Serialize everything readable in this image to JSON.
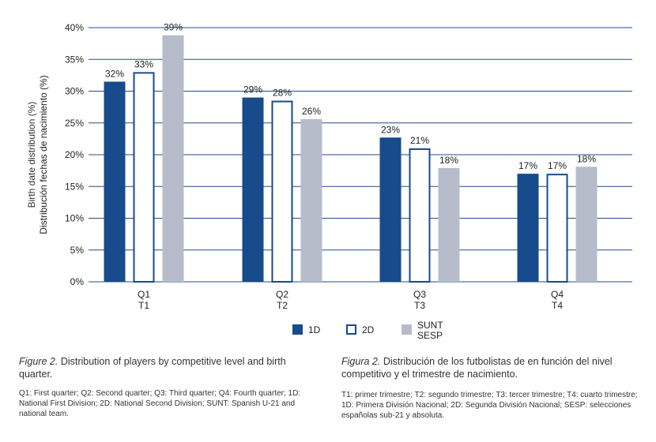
{
  "chart_data": {
    "type": "bar",
    "ylabel_en": "Birth date distribution (%)",
    "ylabel_es": "Distribución fechas de nacimiento (%)",
    "ylim": [
      0,
      40
    ],
    "yticks": [
      "0%",
      "5%",
      "10%",
      "15%",
      "20%",
      "25%",
      "30%",
      "35%",
      "40%"
    ],
    "ytick_values": [
      0,
      5,
      10,
      15,
      20,
      25,
      30,
      35,
      40
    ],
    "grid": true,
    "categories": [
      {
        "en": "Q1",
        "es": "T1"
      },
      {
        "en": "Q2",
        "es": "T2"
      },
      {
        "en": "Q3",
        "es": "T3"
      },
      {
        "en": "Q4",
        "es": "T4"
      }
    ],
    "series": [
      {
        "name": "1D",
        "values": [
          31.5,
          29,
          22.7,
          17
        ],
        "labels": [
          "32%",
          "29%",
          "23%",
          "17%"
        ],
        "style": "filled",
        "color": "#174b8c"
      },
      {
        "name": "2D",
        "values": [
          33,
          28.5,
          21,
          17
        ],
        "labels": [
          "33%",
          "28%",
          "21%",
          "17%"
        ],
        "style": "outline",
        "color": "#174b8c"
      },
      {
        "name": "SUNT\nSESP",
        "values": [
          38.8,
          25.6,
          17.9,
          18.1
        ],
        "labels": [
          "39%",
          "26%",
          "18%",
          "18%"
        ],
        "style": "filled",
        "color": "#b7bccb"
      }
    ],
    "legend_position": "bottom-center"
  },
  "captions": {
    "en": {
      "title_label": "Figure 2.",
      "title_text": " Distribution of players by competitive level and birth quarter.",
      "notes": "Q1: First quarter; Q2: Second quarter; Q3: Third quarter; Q4: Fourth quarter; 1D: National First Division; 2D: National Second Division; SUNT: Spanish U-21 and national team."
    },
    "es": {
      "title_label": "Figura 2.",
      "title_text": " Distribución de los futbolistas de en función del nivel competitivo y el trimestre de nacimiento.",
      "notes": "T1: primer trimestre; T2: segundo trimestre; T3: tercer trimestre; T4: cuarto trimestre; 1D: Primera División Nacional; 2D: Segunda División Nacional; SESP: selecciones españolas sub-21 y absoluta."
    }
  }
}
